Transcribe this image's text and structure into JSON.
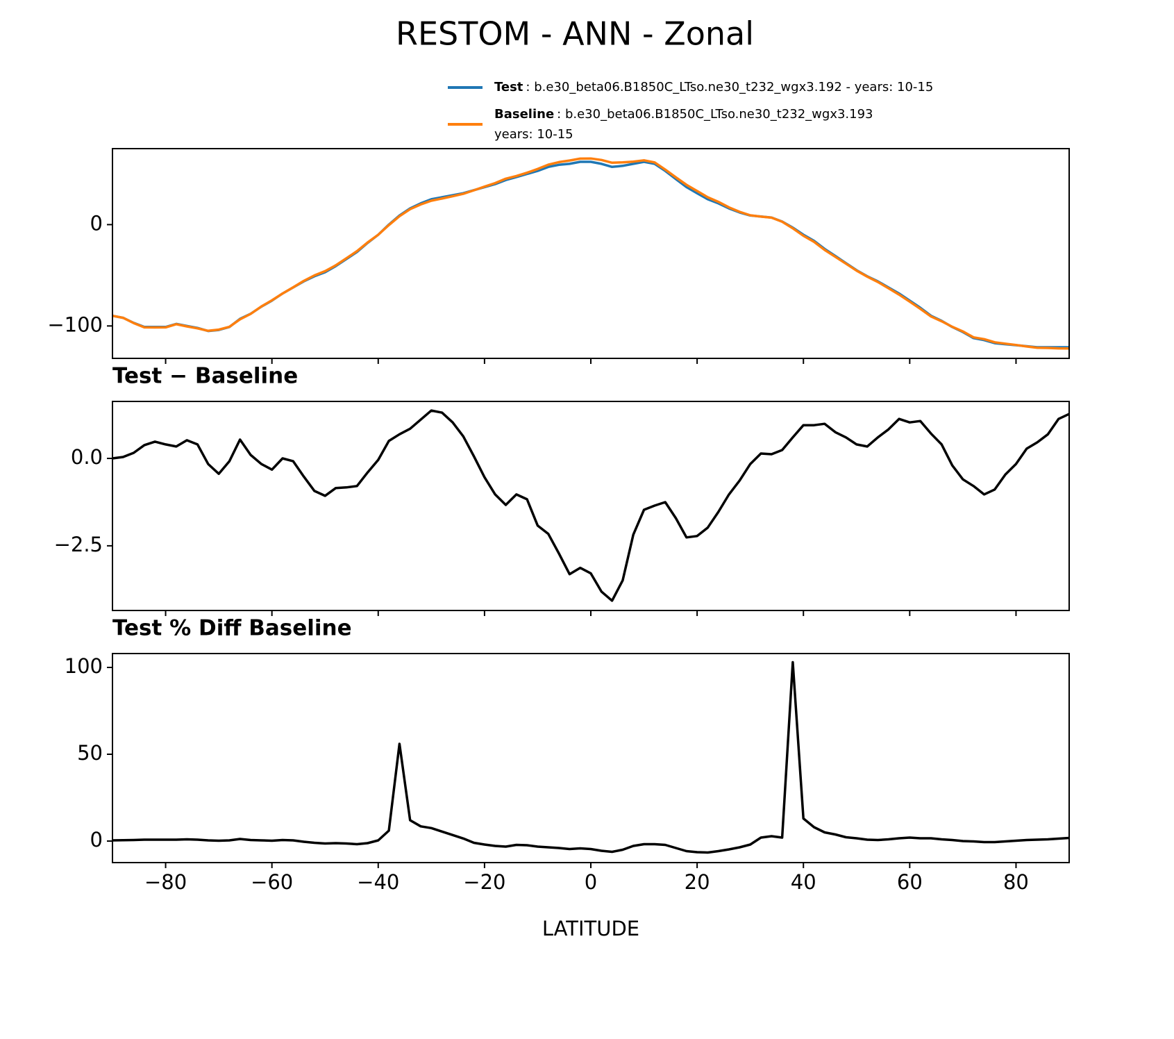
{
  "chart_data": [
    {
      "type": "line",
      "title": "RESTOM - ANN - Zonal",
      "x": [
        -90,
        -88,
        -86,
        -84,
        -82,
        -80,
        -78,
        -76,
        -74,
        -72,
        -70,
        -68,
        -66,
        -64,
        -62,
        -60,
        -58,
        -56,
        -54,
        -52,
        -50,
        -48,
        -46,
        -44,
        -42,
        -40,
        -38,
        -36,
        -34,
        -32,
        -30,
        -28,
        -26,
        -24,
        -22,
        -20,
        -18,
        -16,
        -14,
        -12,
        -10,
        -8,
        -6,
        -4,
        -2,
        0,
        2,
        4,
        6,
        8,
        10,
        12,
        14,
        16,
        18,
        20,
        22,
        24,
        26,
        28,
        30,
        32,
        34,
        36,
        38,
        40,
        42,
        44,
        46,
        48,
        50,
        52,
        54,
        56,
        58,
        60,
        62,
        64,
        66,
        68,
        70,
        72,
        74,
        76,
        78,
        80,
        82,
        84,
        86,
        88,
        90
      ],
      "series": [
        {
          "name": "Test",
          "label": [
            ": b.e30_beta06.B1850C_LTso.ne30_t232_wgx3.192 - years: 10-15"
          ],
          "color": "#1f77b4",
          "values": [
            -90,
            -92,
            -97,
            -101,
            -101,
            -101,
            -98,
            -100,
            -102,
            -105,
            -104,
            -101,
            -93,
            -88,
            -81,
            -75,
            -68,
            -62,
            -56,
            -51,
            -47,
            -41,
            -34,
            -27,
            -18,
            -10,
            0,
            9,
            16,
            21,
            25,
            27,
            29,
            31,
            34,
            37,
            40,
            44,
            47,
            50,
            53,
            57,
            59,
            60,
            62,
            62,
            60,
            57,
            58,
            60,
            62,
            60,
            53,
            45,
            37,
            31,
            25,
            21,
            16,
            12,
            9,
            8,
            7,
            3,
            -3,
            -10,
            -16,
            -24,
            -31,
            -38,
            -45,
            -51,
            -56,
            -62,
            -68,
            -75,
            -82,
            -90,
            -95,
            -101,
            -106,
            -112,
            -114,
            -117,
            -118,
            -119,
            -120,
            -121,
            -121,
            -121,
            -121
          ]
        },
        {
          "name": "Baseline",
          "label": [
            ": b.e30_beta06.B1850C_LTso.ne30_t232_wgx3.193",
            "years: 10-15"
          ],
          "color": "#ff7f0e",
          "values": [
            -90.0,
            -92.0,
            -97.2,
            -101.4,
            -101.5,
            -101.4,
            -98.3,
            -100.5,
            -102.4,
            -104.8,
            -103.6,
            -100.9,
            -93.5,
            -88.1,
            -80.8,
            -74.7,
            -68.0,
            -61.9,
            -55.5,
            -50.1,
            -45.9,
            -40.2,
            -33.2,
            -26.2,
            -17.6,
            -10.0,
            -0.5,
            8.3,
            15.2,
            19.9,
            23.6,
            25.7,
            28.0,
            30.4,
            33.9,
            37.5,
            41.0,
            45.3,
            48.0,
            51.2,
            54.9,
            59.2,
            61.7,
            63.3,
            65.1,
            65.3,
            63.8,
            61.1,
            61.5,
            62.2,
            63.5,
            61.4,
            54.3,
            46.7,
            39.3,
            33.2,
            27.0,
            22.5,
            17.0,
            12.6,
            9.2,
            7.9,
            6.9,
            2.8,
            -3.6,
            -11.0,
            -17.0,
            -25.0,
            -31.8,
            -38.6,
            -45.4,
            -51.3,
            -56.6,
            -62.8,
            -69.1,
            -76.0,
            -83.1,
            -90.7,
            -95.4,
            -100.8,
            -105.4,
            -111.2,
            -113.0,
            -116.1,
            -117.5,
            -118.8,
            -120.3,
            -121.5,
            -121.7,
            -122.1,
            -122.3
          ]
        }
      ],
      "xlim": [
        -90,
        90
      ],
      "xticks": [
        -80,
        -60,
        -40,
        -20,
        0,
        20,
        40,
        60,
        80
      ],
      "ylim": [
        -132,
        75
      ],
      "yticks": [
        {
          "value": -100,
          "label": "−100"
        },
        0
      ]
    },
    {
      "type": "line",
      "subtitle": "Test − Baseline",
      "x": [
        -90,
        -88,
        -86,
        -84,
        -82,
        -80,
        -78,
        -76,
        -74,
        -72,
        -70,
        -68,
        -66,
        -64,
        -62,
        -60,
        -58,
        -56,
        -54,
        -52,
        -50,
        -48,
        -46,
        -44,
        -42,
        -40,
        -38,
        -36,
        -34,
        -32,
        -30,
        -28,
        -26,
        -24,
        -22,
        -20,
        -18,
        -16,
        -14,
        -12,
        -10,
        -8,
        -6,
        -4,
        -2,
        0,
        2,
        4,
        6,
        8,
        10,
        12,
        14,
        16,
        18,
        20,
        22,
        24,
        26,
        28,
        30,
        32,
        34,
        36,
        38,
        40,
        42,
        44,
        46,
        48,
        50,
        52,
        54,
        56,
        58,
        60,
        62,
        64,
        66,
        68,
        70,
        72,
        74,
        76,
        78,
        80,
        82,
        84,
        86,
        88,
        90
      ],
      "values": [
        0.0,
        0.04,
        0.16,
        0.38,
        0.48,
        0.4,
        0.34,
        0.52,
        0.4,
        -0.16,
        -0.44,
        -0.08,
        0.54,
        0.1,
        -0.16,
        -0.32,
        0.0,
        -0.08,
        -0.52,
        -0.93,
        -1.07,
        -0.85,
        -0.83,
        -0.79,
        -0.4,
        -0.04,
        0.5,
        0.69,
        0.85,
        1.11,
        1.37,
        1.31,
        1.03,
        0.63,
        0.06,
        -0.54,
        -1.03,
        -1.33,
        -1.03,
        -1.17,
        -1.92,
        -2.16,
        -2.72,
        -3.31,
        -3.13,
        -3.29,
        -3.81,
        -4.07,
        -3.49,
        -2.18,
        -1.47,
        -1.35,
        -1.25,
        -1.71,
        -2.26,
        -2.22,
        -1.98,
        -1.53,
        -1.03,
        -0.63,
        -0.16,
        0.14,
        0.12,
        0.24,
        0.6,
        0.95,
        0.95,
        0.99,
        0.75,
        0.6,
        0.4,
        0.34,
        0.6,
        0.83,
        1.13,
        1.03,
        1.07,
        0.71,
        0.4,
        -0.2,
        -0.6,
        -0.79,
        -1.03,
        -0.89,
        -0.46,
        -0.16,
        0.28,
        0.46,
        0.69,
        1.13,
        1.27
      ],
      "color": "#000000",
      "xlim": [
        -90,
        90
      ],
      "xticks": [
        -80,
        -60,
        -40,
        -20,
        0,
        20,
        40,
        60,
        80
      ],
      "ylim": [
        -4.35,
        1.63
      ],
      "yticks": [
        {
          "value": -2.5,
          "label": "−2.5"
        },
        {
          "value": 0,
          "label": "0.0"
        }
      ]
    },
    {
      "type": "line",
      "subtitle": "Test % Diff Baseline",
      "xlabel": "LATITUDE",
      "x": [
        -90,
        -88,
        -86,
        -84,
        -82,
        -80,
        -78,
        -76,
        -74,
        -72,
        -70,
        -68,
        -66,
        -64,
        -62,
        -60,
        -58,
        -56,
        -54,
        -52,
        -50,
        -48,
        -46,
        -44,
        -42,
        -40,
        -38,
        -36,
        -34,
        -32,
        -30,
        -28,
        -26,
        -24,
        -22,
        -20,
        -18,
        -16,
        -14,
        -12,
        -10,
        -8,
        -6,
        -4,
        -2,
        0,
        2,
        4,
        6,
        8,
        10,
        12,
        14,
        16,
        18,
        20,
        22,
        24,
        26,
        28,
        30,
        32,
        34,
        36,
        38,
        40,
        42,
        44,
        46,
        48,
        50,
        52,
        54,
        56,
        58,
        60,
        62,
        64,
        66,
        68,
        70,
        72,
        74,
        76,
        78,
        80,
        82,
        84,
        86,
        88,
        90
      ],
      "values": [
        0.4,
        0.5,
        0.6,
        0.8,
        0.8,
        0.8,
        0.8,
        1.0,
        0.8,
        0.4,
        0.2,
        0.4,
        1.2,
        0.6,
        0.4,
        0.2,
        0.6,
        0.4,
        -0.4,
        -1.0,
        -1.4,
        -1.2,
        -1.4,
        -1.8,
        -1.2,
        0.4,
        6,
        56,
        12,
        8.5,
        7.5,
        5.5,
        3.5,
        1.5,
        -1,
        -2,
        -2.8,
        -3.2,
        -2.2,
        -2.4,
        -3.2,
        -3.6,
        -4,
        -4.6,
        -4.2,
        -4.6,
        -5.6,
        -6.2,
        -5,
        -2.8,
        -1.8,
        -1.8,
        -2.2,
        -4,
        -5.8,
        -6.4,
        -6.6,
        -5.8,
        -4.8,
        -3.6,
        -2,
        2,
        2.8,
        2,
        103,
        13,
        8,
        5,
        3.8,
        2.2,
        1.6,
        0.8,
        0.6,
        1,
        1.6,
        2,
        1.6,
        1.6,
        1.0,
        0.6,
        0,
        -0.2,
        -0.6,
        -0.6,
        -0.2,
        0.2,
        0.6,
        0.8,
        1,
        1.4,
        1.8
      ],
      "color": "#000000",
      "xlim": [
        -90,
        90
      ],
      "xticks": [
        {
          "value": -80,
          "label": "−80"
        },
        {
          "value": -60,
          "label": "−60"
        },
        {
          "value": -40,
          "label": "−40"
        },
        {
          "value": -20,
          "label": "−20"
        },
        0,
        20,
        40,
        60,
        80
      ],
      "ylim": [
        -12.4,
        108
      ],
      "yticks": [
        0,
        50,
        100
      ]
    }
  ]
}
